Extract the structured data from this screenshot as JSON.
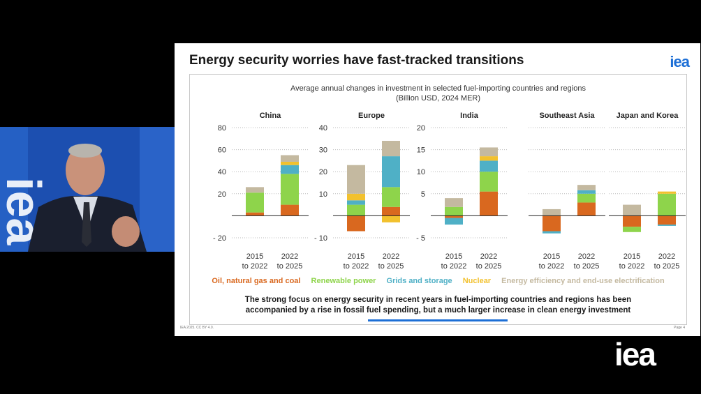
{
  "slide": {
    "title": "Energy security worries have fast-tracked transitions",
    "logo": "iea",
    "chart_title_line1": "Average annual changes in investment in selected fuel-importing countries and regions",
    "chart_title_line2": "(Billion USD, 2024 MER)",
    "caption_line1": "The strong focus on energy security in recent years in fuel-importing countries and regions has been",
    "caption_line2": "accompanied by a rise in fossil fuel spending, but a much larger increase in clean energy investment",
    "footer_left": "IEA 2025. CC BY 4.0.",
    "footer_right": "Page 4",
    "progress_fraction": 0.27
  },
  "corner_logo": "iea",
  "colors": {
    "oil": "#d9681f",
    "renewable": "#8ed44b",
    "grids": "#4fb0c6",
    "nuclear": "#f2c12e",
    "efficiency": "#c4b9a0",
    "brand": "#1d6fd6"
  },
  "chart_data": {
    "type": "bar",
    "stacked": true,
    "series_names": [
      "Oil, natural gas and coal",
      "Renewable power",
      "Grids and storage",
      "Nuclear",
      "Energy efficiency and end-use electrification"
    ],
    "series_keys": [
      "oil",
      "renewable",
      "grids",
      "nuclear",
      "efficiency"
    ],
    "categories": [
      "2015\nto 2022",
      "2022\nto 2025"
    ],
    "panels": [
      {
        "name": "China",
        "ylim": [
          -20,
          80
        ],
        "ticks": [
          80,
          60,
          40,
          20,
          -20
        ],
        "bars": [
          {
            "oil": 3,
            "renewable": 18,
            "grids": 0,
            "nuclear": 0,
            "efficiency": 5
          },
          {
            "oil": 10,
            "renewable": 28,
            "grids": 8,
            "nuclear": 3,
            "efficiency": 6
          }
        ]
      },
      {
        "name": "Europe",
        "ylim": [
          -10,
          40
        ],
        "ticks": [
          40,
          30,
          20,
          10,
          -10
        ],
        "bars": [
          {
            "oil": -7,
            "renewable": 5,
            "grids": 2,
            "nuclear": 3,
            "efficiency": 13
          },
          {
            "oil": 4,
            "renewable": 9,
            "grids": 14,
            "nuclear": -3,
            "efficiency": 7
          }
        ]
      },
      {
        "name": "India",
        "ylim": [
          -5,
          20
        ],
        "ticks": [
          20,
          15,
          10,
          5,
          -5
        ],
        "bars": [
          {
            "oil": -0.5,
            "renewable": 2,
            "grids": -1.5,
            "nuclear": 0,
            "efficiency": 2
          },
          {
            "oil": 5.5,
            "renewable": 4.5,
            "grids": 2.5,
            "nuclear": 1,
            "efficiency": 2
          }
        ]
      },
      {
        "name": "Southeast Asia",
        "ylim": [
          -5,
          20
        ],
        "ticks": [],
        "bars": [
          {
            "oil": -3.5,
            "renewable": 0,
            "grids": -0.5,
            "nuclear": 0,
            "efficiency": 1.5
          },
          {
            "oil": 3,
            "renewable": 2,
            "grids": 0.8,
            "nuclear": 0,
            "efficiency": 1.2
          }
        ]
      },
      {
        "name": "Japan and Korea",
        "ylim": [
          -5,
          20
        ],
        "ticks": [],
        "bars": [
          {
            "oil": -2.5,
            "renewable": -1.2,
            "grids": 0,
            "nuclear": 0,
            "efficiency": 2.5
          },
          {
            "oil": -2,
            "renewable": 5,
            "grids": -0.3,
            "nuclear": 0.5,
            "efficiency": 0
          }
        ]
      }
    ]
  }
}
